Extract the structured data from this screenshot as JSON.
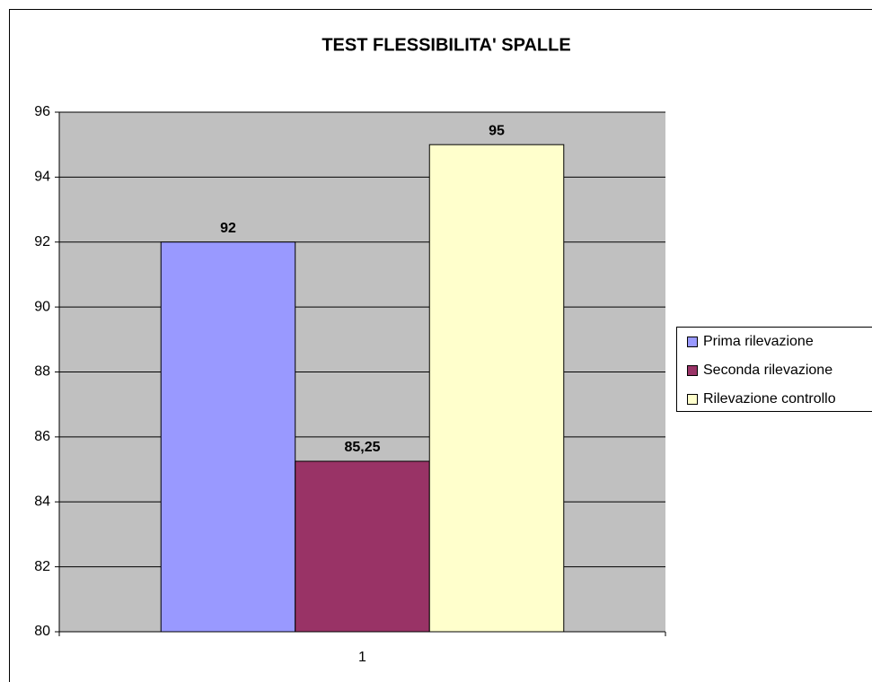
{
  "chart_data": {
    "type": "bar",
    "title": "TEST FLESSIBILITA' SPALLE",
    "categories": [
      "1"
    ],
    "series": [
      {
        "name": "Prima rilevazione",
        "color": "#9999ff",
        "values": [
          92
        ]
      },
      {
        "name": "Seconda rilevazione",
        "color": "#993366",
        "values": [
          85.25
        ],
        "value_labels": [
          "85,25"
        ]
      },
      {
        "name": "Rilevazione controllo",
        "color": "#ffffcc",
        "values": [
          95
        ]
      }
    ],
    "ylim": [
      80,
      96
    ],
    "yticks": [
      80,
      82,
      84,
      86,
      88,
      90,
      92,
      94,
      96
    ],
    "grid": true,
    "legend": "right",
    "plot_background": "#c0c0c0"
  }
}
